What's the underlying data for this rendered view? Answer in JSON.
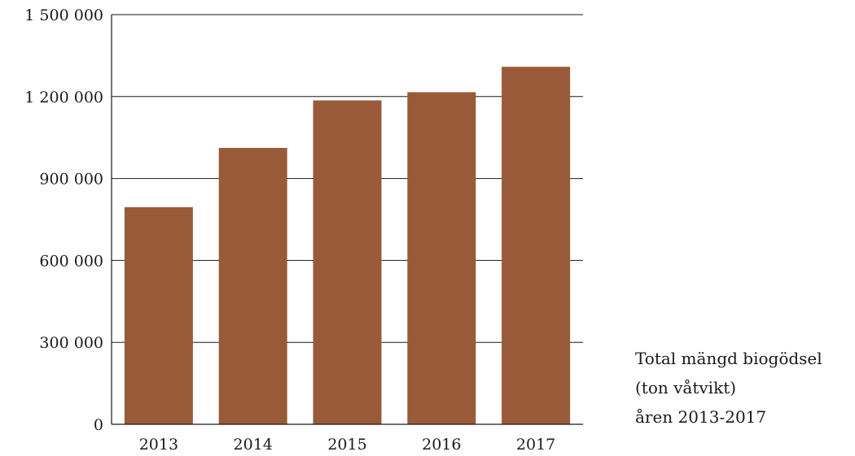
{
  "chart_data": {
    "type": "bar",
    "categories": [
      "2013",
      "2014",
      "2015",
      "2016",
      "2017"
    ],
    "values": [
      795000,
      1012000,
      1186000,
      1216000,
      1309000
    ],
    "ylim": [
      0,
      1500000
    ],
    "yticks": [
      0,
      300000,
      600000,
      900000,
      1200000,
      1500000
    ],
    "ytick_labels": [
      "0",
      "300 000",
      "600 000",
      "900 000",
      "1 200 000",
      "1 500 000"
    ],
    "grid": true,
    "legend_placement": "bottom-right",
    "bar_color": "#995a3a",
    "annotation_lines": [
      "Total mängd biogödsel",
      "(ton våtvikt)",
      "åren 2013-2017"
    ]
  }
}
